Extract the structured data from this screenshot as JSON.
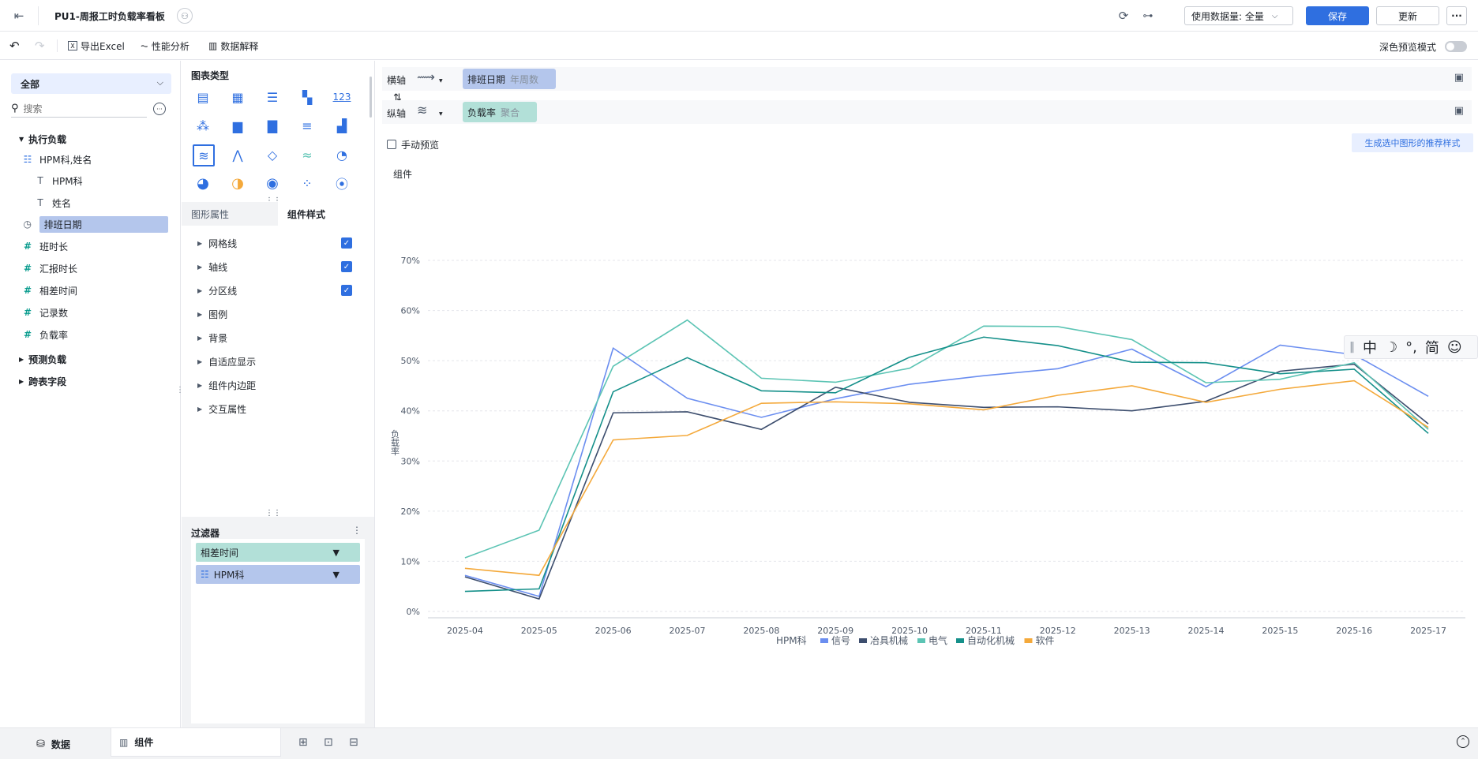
{
  "header": {
    "title": "PU1-周报工时负载率看板",
    "data_volume_label": "使用数据量: 全量",
    "save": "保存",
    "update": "更新",
    "more": "···"
  },
  "toolbar": {
    "export": "导出Excel",
    "performance": "性能分析",
    "explain": "数据解释",
    "dark_preview": "深色预览模式"
  },
  "left": {
    "dropdown": "全部",
    "search_placeholder": "搜索",
    "groups": [
      {
        "label": "执行负载"
      },
      {
        "label": "预测负载"
      },
      {
        "label": "跨表字段"
      }
    ],
    "fields": [
      {
        "label": "HPM科,姓名",
        "icon": "hierarchy-icon"
      },
      {
        "label": "HPM科",
        "icon": "text-icon"
      },
      {
        "label": "姓名",
        "icon": "text-icon"
      },
      {
        "label": "排班日期",
        "icon": "date-icon"
      },
      {
        "label": "班时长",
        "icon": "number-icon"
      },
      {
        "label": "汇报时长",
        "icon": "number-icon"
      },
      {
        "label": "相差时间",
        "icon": "number-icon"
      },
      {
        "label": "记录数",
        "icon": "number-icon"
      },
      {
        "label": "负载率",
        "icon": "calc-number-icon"
      }
    ]
  },
  "mid": {
    "chart_types_title": "图表类型",
    "tabs": [
      "图形属性",
      "组件样式"
    ],
    "props": [
      "网格线",
      "轴线",
      "分区线",
      "图例",
      "背景",
      "自适应显示",
      "组件内边距",
      "交互属性"
    ],
    "filter_title": "过滤器",
    "filters": [
      "相差时间",
      "HPM科"
    ]
  },
  "main": {
    "x_axis_label": "横轴",
    "y_axis_label": "纵轴",
    "x_pill_field": "排班日期",
    "x_pill_agg": "年周数",
    "y_pill_field": "负载率",
    "y_pill_agg": "聚合",
    "manual_preview": "手动预览",
    "recommend_btn": "生成选中图形的推荐样式",
    "component_label": "组件"
  },
  "ime": {
    "items": [
      "中",
      "☽",
      "°,",
      "简",
      "☺"
    ]
  },
  "bottom": {
    "tab_data": "数据",
    "tab_component": "组件"
  },
  "chart_data": {
    "type": "line",
    "title": "",
    "xlabel": "",
    "ylabel": "负载率",
    "ylim": [
      0,
      70
    ],
    "y_ticks": [
      "0%",
      "10%",
      "20%",
      "30%",
      "40%",
      "50%",
      "60%",
      "70%"
    ],
    "categories": [
      "2025-04",
      "2025-05",
      "2025-06",
      "2025-07",
      "2025-08",
      "2025-09",
      "2025-10",
      "2025-11",
      "2025-12",
      "2025-13",
      "2025-14",
      "2025-15",
      "2025-16",
      "2025-17"
    ],
    "legend_title": "HPM科",
    "legend_position": "bottom",
    "grid": true,
    "series": [
      {
        "name": "信号",
        "color": "#6b8ef0",
        "values": [
          7.2,
          3.0,
          52.5,
          42.5,
          38.7,
          42.4,
          45.3,
          47.0,
          48.4,
          52.3,
          44.8,
          53.1,
          51.2,
          42.9
        ]
      },
      {
        "name": "冶具机械",
        "color": "#3d4e6e",
        "values": [
          6.9,
          2.5,
          39.6,
          39.8,
          36.3,
          44.7,
          41.7,
          40.7,
          40.8,
          40.0,
          41.9,
          47.9,
          49.3,
          37.4
        ]
      },
      {
        "name": "电气",
        "color": "#5cc4b4",
        "values": [
          10.7,
          16.2,
          48.9,
          58.1,
          46.5,
          45.7,
          48.5,
          56.9,
          56.8,
          54.2,
          45.6,
          46.3,
          49.6,
          36.3
        ]
      },
      {
        "name": "自动化机械",
        "color": "#15908a",
        "values": [
          4.0,
          4.5,
          43.8,
          50.6,
          44.0,
          43.6,
          50.7,
          54.7,
          53.0,
          49.7,
          49.6,
          47.4,
          48.3,
          35.5
        ]
      },
      {
        "name": "软件",
        "color": "#f4a93b",
        "values": [
          8.6,
          7.2,
          34.2,
          35.1,
          41.5,
          41.8,
          41.4,
          40.2,
          43.1,
          45.0,
          41.7,
          44.3,
          46.0,
          36.7
        ]
      }
    ]
  }
}
